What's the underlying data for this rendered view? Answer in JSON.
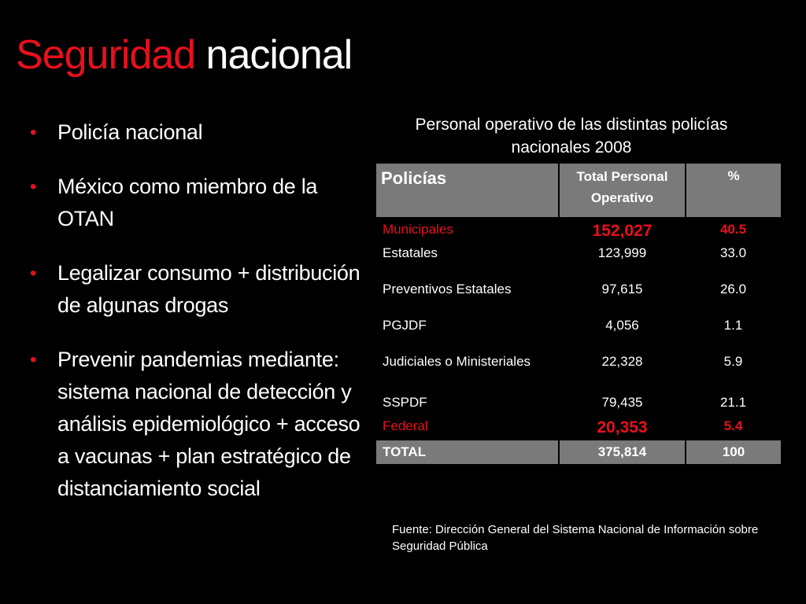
{
  "slide": {
    "title_accent": "Seguridad",
    "title_rest": "nacional"
  },
  "bullets": [
    "Policía nacional",
    "México como miembro de la OTAN",
    "Legalizar consumo + distribución de algunas drogas",
    "Prevenir pandemias mediante: sistema nacional de detección y análisis epidemiológico + acceso a vacunas + plan estratégico de distanciamiento social"
  ],
  "table": {
    "caption": "Personal operativo de las distintas policías nacionales 2008",
    "headers": [
      "Policías",
      "Total Personal Operativo",
      "%"
    ],
    "rows": [
      {
        "name": "Municipales",
        "total": "152,027",
        "pct": "40.5"
      },
      {
        "name": "Estatales",
        "total": "123,999",
        "pct": "33.0"
      },
      {
        "name": "Preventivos Estatales",
        "total": "97,615",
        "pct": "26.0"
      },
      {
        "name": "PGJDF",
        "total": "4,056",
        "pct": "1.1"
      },
      {
        "name": "Judiciales o Ministeriales",
        "total": "22,328",
        "pct": "5.9"
      },
      {
        "name": "SSPDF",
        "total": "79,435",
        "pct": "21.1"
      },
      {
        "name": "Federal",
        "total": "20,353",
        "pct": "5.4"
      }
    ],
    "total": {
      "name": "TOTAL",
      "total": "375,814",
      "pct": "100"
    }
  },
  "source": "Fuente: Dirección General del Sistema Nacional de Información sobre Seguridad Pública",
  "colors": {
    "accent": "#e8101d",
    "header_bg": "#7a7a7a",
    "background": "#000000"
  }
}
